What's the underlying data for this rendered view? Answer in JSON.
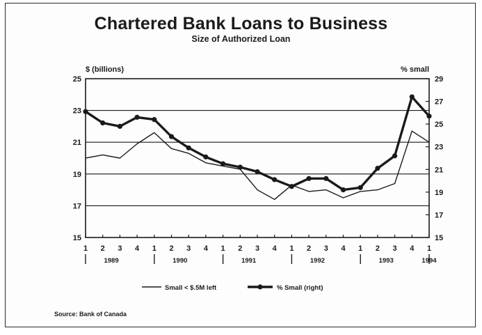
{
  "chart_data": {
    "type": "line",
    "title": "Chartered Bank Loans to Business",
    "subtitle": "Size of Authorized Loan",
    "ylabel_left": "$ (billions)",
    "ylabel_right": "% small",
    "ylim_left": [
      15,
      25
    ],
    "ylim_right": [
      15,
      29
    ],
    "yticks_left": [
      15,
      17,
      19,
      21,
      23,
      25
    ],
    "yticks_right": [
      15,
      17,
      19,
      21,
      23,
      25,
      27,
      29
    ],
    "grid": "horizontal",
    "quarters": [
      "1",
      "2",
      "3",
      "4",
      "1",
      "2",
      "3",
      "4",
      "1",
      "2",
      "3",
      "4",
      "1",
      "2",
      "3",
      "4",
      "1",
      "2",
      "3",
      "4",
      "1"
    ],
    "years": [
      "1989",
      "1990",
      "1991",
      "1992",
      "1993",
      "1994"
    ],
    "series": [
      {
        "name": "Small < $.5M left",
        "axis": "left",
        "style": "thin",
        "values": [
          20.0,
          20.2,
          20.0,
          20.9,
          21.6,
          20.6,
          20.3,
          19.7,
          19.5,
          19.3,
          18.0,
          17.4,
          18.3,
          17.9,
          18.0,
          17.5,
          17.9,
          18.0,
          18.4,
          21.7,
          21.0
        ]
      },
      {
        "name": "% Small (right)",
        "axis": "right",
        "style": "thick-marker",
        "values": [
          26.1,
          25.1,
          24.8,
          25.6,
          25.4,
          23.9,
          22.9,
          22.1,
          21.5,
          21.2,
          20.8,
          20.1,
          19.5,
          20.2,
          20.2,
          19.2,
          19.4,
          21.1,
          22.2,
          27.4,
          25.7
        ]
      }
    ],
    "legend_position": "bottom-center"
  },
  "source": "Source: Bank of Canada"
}
